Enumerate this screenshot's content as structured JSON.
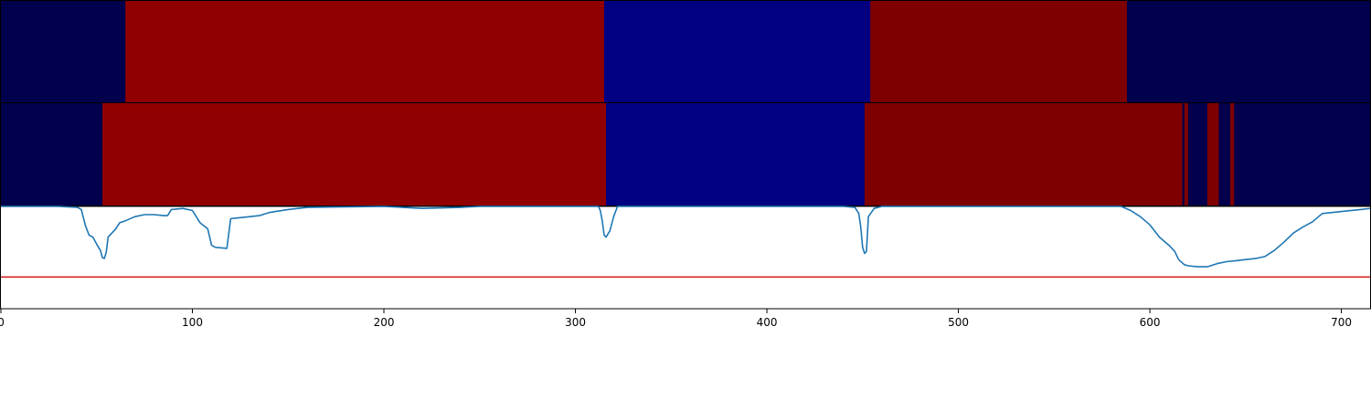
{
  "chart_data": {
    "type": "segmentation-timeline",
    "x_ticks": [
      "0",
      "100",
      "200",
      "300",
      "400",
      "500",
      "600",
      "700"
    ],
    "xlim": [
      0,
      715
    ],
    "segment_rows": [
      {
        "segments": [
          {
            "start": 0,
            "end": 65,
            "color": "#00004c"
          },
          {
            "start": 65,
            "end": 315,
            "color": "#910000"
          },
          {
            "start": 315,
            "end": 454,
            "color": "#000080"
          },
          {
            "start": 454,
            "end": 588,
            "color": "#7f0000"
          },
          {
            "start": 588,
            "end": 715,
            "color": "#00004c"
          }
        ]
      },
      {
        "segments": [
          {
            "start": 0,
            "end": 53,
            "color": "#00004c"
          },
          {
            "start": 53,
            "end": 316,
            "color": "#910000"
          },
          {
            "start": 316,
            "end": 451,
            "color": "#000080"
          },
          {
            "start": 451,
            "end": 617,
            "color": "#7f0000"
          },
          {
            "start": 617,
            "end": 618,
            "color": "#00004c"
          },
          {
            "start": 618,
            "end": 620,
            "color": "#7f0000"
          },
          {
            "start": 620,
            "end": 630,
            "color": "#00004c"
          },
          {
            "start": 630,
            "end": 636,
            "color": "#7f0000"
          },
          {
            "start": 636,
            "end": 642,
            "color": "#00004c"
          },
          {
            "start": 642,
            "end": 644,
            "color": "#7f0000"
          },
          {
            "start": 644,
            "end": 715,
            "color": "#00004c"
          }
        ]
      }
    ],
    "line_series": {
      "color": "#1f77b4",
      "ylim": [
        0,
        1
      ],
      "points": [
        [
          0,
          1.0
        ],
        [
          30,
          1.0
        ],
        [
          40,
          0.99
        ],
        [
          42,
          0.97
        ],
        [
          44,
          0.82
        ],
        [
          46,
          0.72
        ],
        [
          48,
          0.7
        ],
        [
          50,
          0.63
        ],
        [
          52,
          0.57
        ],
        [
          53,
          0.5
        ],
        [
          54,
          0.49
        ],
        [
          55,
          0.55
        ],
        [
          56,
          0.7
        ],
        [
          58,
          0.74
        ],
        [
          60,
          0.78
        ],
        [
          62,
          0.84
        ],
        [
          65,
          0.86
        ],
        [
          70,
          0.9
        ],
        [
          75,
          0.92
        ],
        [
          80,
          0.92
        ],
        [
          85,
          0.91
        ],
        [
          87,
          0.91
        ],
        [
          89,
          0.97
        ],
        [
          95,
          0.98
        ],
        [
          100,
          0.96
        ],
        [
          102,
          0.9
        ],
        [
          104,
          0.84
        ],
        [
          108,
          0.78
        ],
        [
          110,
          0.62
        ],
        [
          112,
          0.6
        ],
        [
          118,
          0.59
        ],
        [
          120,
          0.88
        ],
        [
          125,
          0.89
        ],
        [
          130,
          0.9
        ],
        [
          135,
          0.91
        ],
        [
          140,
          0.94
        ],
        [
          150,
          0.97
        ],
        [
          160,
          0.99
        ],
        [
          200,
          1.0
        ],
        [
          220,
          0.98
        ],
        [
          240,
          0.99
        ],
        [
          250,
          1.0
        ],
        [
          300,
          1.0
        ],
        [
          312,
          1.0
        ],
        [
          313,
          0.96
        ],
        [
          314,
          0.86
        ],
        [
          315,
          0.72
        ],
        [
          316,
          0.7
        ],
        [
          318,
          0.76
        ],
        [
          320,
          0.9
        ],
        [
          322,
          1.0
        ],
        [
          440,
          1.0
        ],
        [
          446,
          0.99
        ],
        [
          448,
          0.93
        ],
        [
          449,
          0.8
        ],
        [
          450,
          0.6
        ],
        [
          451,
          0.54
        ],
        [
          452,
          0.56
        ],
        [
          453,
          0.9
        ],
        [
          456,
          0.98
        ],
        [
          460,
          1.0
        ],
        [
          585,
          1.0
        ],
        [
          590,
          0.96
        ],
        [
          595,
          0.9
        ],
        [
          600,
          0.82
        ],
        [
          605,
          0.7
        ],
        [
          610,
          0.62
        ],
        [
          613,
          0.56
        ],
        [
          615,
          0.48
        ],
        [
          618,
          0.43
        ],
        [
          620,
          0.42
        ],
        [
          625,
          0.41
        ],
        [
          630,
          0.41
        ],
        [
          635,
          0.44
        ],
        [
          640,
          0.46
        ],
        [
          645,
          0.47
        ],
        [
          650,
          0.48
        ],
        [
          655,
          0.49
        ],
        [
          660,
          0.51
        ],
        [
          665,
          0.57
        ],
        [
          670,
          0.65
        ],
        [
          675,
          0.74
        ],
        [
          680,
          0.8
        ],
        [
          685,
          0.85
        ],
        [
          690,
          0.93
        ],
        [
          695,
          0.94
        ],
        [
          700,
          0.95
        ],
        [
          710,
          0.97
        ],
        [
          715,
          0.98
        ]
      ]
    },
    "threshold": {
      "value": 0.31,
      "color": "#d62728"
    }
  }
}
